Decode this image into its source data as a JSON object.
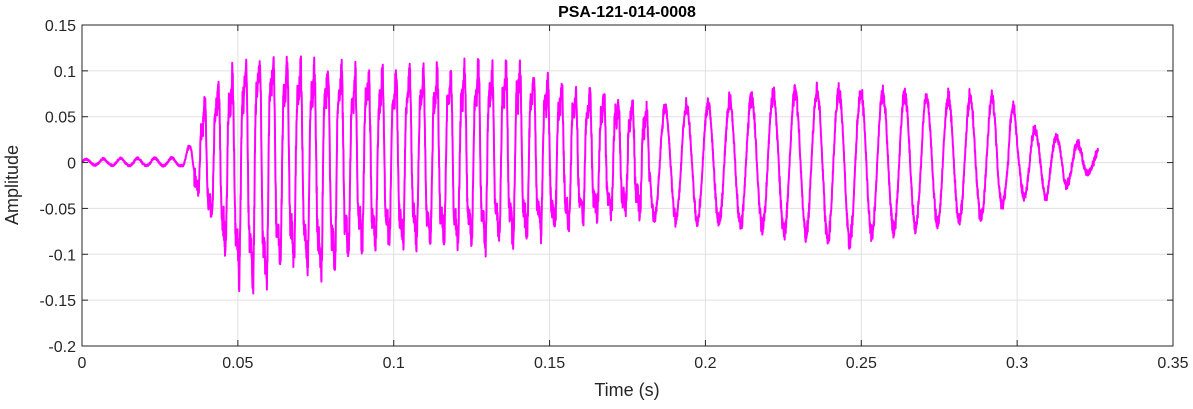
{
  "chart_data": {
    "type": "line",
    "title": "PSA-121-014-0008",
    "xlabel": "Time (s)",
    "ylabel": "Amplitude",
    "xlim": [
      0,
      0.35
    ],
    "ylim": [
      -0.2,
      0.15
    ],
    "x_ticks": [
      0,
      0.05,
      0.1,
      0.15,
      0.2,
      0.25,
      0.3,
      0.35
    ],
    "x_tick_labels": [
      "0",
      "0.05",
      "0.1",
      "0.15",
      "0.2",
      "0.25",
      "0.3",
      "0.35"
    ],
    "y_ticks": [
      -0.2,
      -0.15,
      -0.1,
      -0.05,
      0,
      0.05,
      0.1,
      0.15
    ],
    "y_tick_labels": [
      "-0.2",
      "-0.15",
      "-0.1",
      "-0.05",
      "0",
      "0.05",
      "0.1",
      "0.15"
    ],
    "grid": true,
    "legend": "none",
    "series": [
      {
        "color": "#ff00ff",
        "signal": {
          "x_start": 0,
          "x_end": 0.326,
          "sample_rate_hz": 16000,
          "segments": [
            {
              "x_start": 0,
              "x_end": 0.032,
              "freq_hz": 180,
              "pos_env": [
                [
                  0,
                  0.004
                ],
                [
                  0.032,
                  0.006
                ]
              ],
              "neg_env": [
                [
                  0,
                  -0.003
                ],
                [
                  0.032,
                  -0.004
                ]
              ],
              "jitter": 0.002
            },
            {
              "x_start": 0.032,
              "x_end": 0.036,
              "freq_hz": 180,
              "pos_env": [
                [
                  0.032,
                  0.006
                ],
                [
                  0.036,
                  0.03
                ]
              ],
              "neg_env": [
                [
                  0.032,
                  -0.004
                ],
                [
                  0.036,
                  -0.025
                ]
              ],
              "jitter": 0.002
            },
            {
              "x_start": 0.036,
              "x_end": 0.182,
              "freq_hz": 220,
              "pos_env": [
                [
                  0.036,
                  0.03
                ],
                [
                  0.04,
                  0.09
                ],
                [
                  0.045,
                  0.11
                ],
                [
                  0.05,
                  0.12
                ],
                [
                  0.058,
                  0.145
                ],
                [
                  0.07,
                  0.13
                ],
                [
                  0.09,
                  0.12
                ],
                [
                  0.11,
                  0.12
                ],
                [
                  0.13,
                  0.13
                ],
                [
                  0.14,
                  0.13
                ],
                [
                  0.15,
                  0.11
                ],
                [
                  0.16,
                  0.095
                ],
                [
                  0.17,
                  0.09
                ],
                [
                  0.182,
                  0.07
                ]
              ],
              "neg_env": [
                [
                  0.036,
                  -0.03
                ],
                [
                  0.04,
                  -0.065
                ],
                [
                  0.048,
                  -0.14
                ],
                [
                  0.058,
                  -0.175
                ],
                [
                  0.065,
                  -0.13
                ],
                [
                  0.077,
                  -0.15
                ],
                [
                  0.09,
                  -0.11
                ],
                [
                  0.11,
                  -0.105
                ],
                [
                  0.13,
                  -0.11
                ],
                [
                  0.14,
                  -0.1
                ],
                [
                  0.16,
                  -0.08
                ],
                [
                  0.17,
                  -0.07
                ],
                [
                  0.182,
                  -0.065
                ]
              ],
              "jitter": 0.02,
              "harmonic": 0.3
            },
            {
              "x_start": 0.182,
              "x_end": 0.326,
              "freq_hz": 148,
              "pos_env": [
                [
                  0.182,
                  0.065
                ],
                [
                  0.2,
                  0.07
                ],
                [
                  0.23,
                  0.085
                ],
                [
                  0.25,
                  0.085
                ],
                [
                  0.27,
                  0.08
                ],
                [
                  0.29,
                  0.078
                ],
                [
                  0.298,
                  0.075
                ],
                [
                  0.3,
                  0.05
                ],
                [
                  0.31,
                  0.035
                ],
                [
                  0.326,
                  0.015
                ]
              ],
              "neg_env": [
                [
                  0.182,
                  -0.065
                ],
                [
                  0.2,
                  -0.07
                ],
                [
                  0.23,
                  -0.085
                ],
                [
                  0.245,
                  -0.095
                ],
                [
                  0.26,
                  -0.08
                ],
                [
                  0.29,
                  -0.065
                ],
                [
                  0.3,
                  -0.04
                ],
                [
                  0.31,
                  -0.04
                ],
                [
                  0.326,
                  -0.005
                ]
              ],
              "jitter": 0.008
            }
          ]
        }
      }
    ]
  }
}
